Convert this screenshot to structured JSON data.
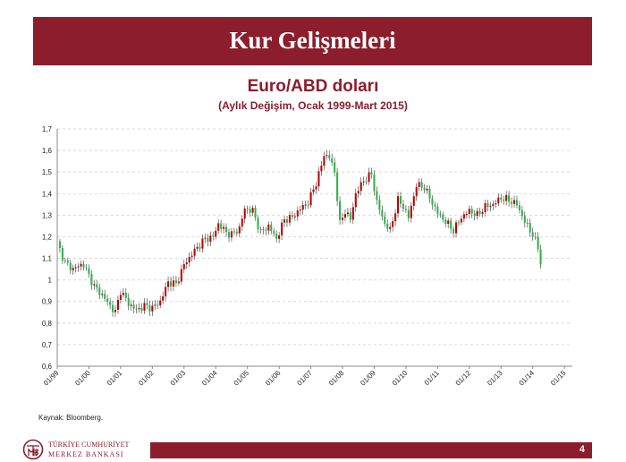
{
  "header": {
    "title": "Kur Gelişmeleri"
  },
  "chart_data": {
    "type": "candlestick",
    "title": "Euro/ABD doları",
    "subtitle": "(Aylık Değişim, Ocak 1999-Mart 2015)",
    "xlabel": "",
    "ylabel": "",
    "ylim": [
      0.6,
      1.7
    ],
    "y_ticks": [
      "0,6",
      "0,7",
      "0,8",
      "0,9",
      "1",
      "1,1",
      "1,2",
      "1,3",
      "1,4",
      "1,5",
      "1,6",
      "1,7"
    ],
    "x_ticks": [
      "01/99",
      "01/00",
      "01/01",
      "01/02",
      "01/03",
      "01/04",
      "01/05",
      "01/06",
      "01/07",
      "01/08",
      "01/09",
      "01/10",
      "01/11",
      "01/12",
      "01/13",
      "01/14",
      "01/15"
    ],
    "grid": true,
    "up_color": "#c00000",
    "down_color": "#2db34a",
    "anchors": [
      {
        "m": 0,
        "v": 1.17
      },
      {
        "m": 3,
        "v": 1.08
      },
      {
        "m": 6,
        "v": 1.05
      },
      {
        "m": 9,
        "v": 1.07
      },
      {
        "m": 10,
        "v": 1.07
      },
      {
        "m": 14,
        "v": 0.97
      },
      {
        "m": 17,
        "v": 0.93
      },
      {
        "m": 20,
        "v": 0.88
      },
      {
        "m": 22,
        "v": 0.85
      },
      {
        "m": 24,
        "v": 0.95
      },
      {
        "m": 27,
        "v": 0.89
      },
      {
        "m": 30,
        "v": 0.86
      },
      {
        "m": 33,
        "v": 0.88
      },
      {
        "m": 36,
        "v": 0.87
      },
      {
        "m": 39,
        "v": 0.9
      },
      {
        "m": 42,
        "v": 0.99
      },
      {
        "m": 45,
        "v": 0.98
      },
      {
        "m": 48,
        "v": 1.07
      },
      {
        "m": 51,
        "v": 1.12
      },
      {
        "m": 53,
        "v": 1.15
      },
      {
        "m": 56,
        "v": 1.19
      },
      {
        "m": 59,
        "v": 1.2
      },
      {
        "m": 61,
        "v": 1.26
      },
      {
        "m": 64,
        "v": 1.22
      },
      {
        "m": 66,
        "v": 1.21
      },
      {
        "m": 69,
        "v": 1.24
      },
      {
        "m": 71,
        "v": 1.33
      },
      {
        "m": 74,
        "v": 1.32
      },
      {
        "m": 77,
        "v": 1.22
      },
      {
        "m": 80,
        "v": 1.25
      },
      {
        "m": 83,
        "v": 1.19
      },
      {
        "m": 86,
        "v": 1.28
      },
      {
        "m": 89,
        "v": 1.29
      },
      {
        "m": 92,
        "v": 1.33
      },
      {
        "m": 95,
        "v": 1.36
      },
      {
        "m": 98,
        "v": 1.45
      },
      {
        "m": 100,
        "v": 1.53
      },
      {
        "m": 101,
        "v": 1.58
      },
      {
        "m": 103,
        "v": 1.57
      },
      {
        "m": 105,
        "v": 1.5
      },
      {
        "m": 107,
        "v": 1.26
      },
      {
        "m": 109,
        "v": 1.32
      },
      {
        "m": 111,
        "v": 1.28
      },
      {
        "m": 113,
        "v": 1.4
      },
      {
        "m": 116,
        "v": 1.46
      },
      {
        "m": 119,
        "v": 1.49
      },
      {
        "m": 121,
        "v": 1.36
      },
      {
        "m": 124,
        "v": 1.26
      },
      {
        "m": 126,
        "v": 1.23
      },
      {
        "m": 129,
        "v": 1.37
      },
      {
        "m": 131,
        "v": 1.34
      },
      {
        "m": 133,
        "v": 1.29
      },
      {
        "m": 136,
        "v": 1.44
      },
      {
        "m": 139,
        "v": 1.43
      },
      {
        "m": 141,
        "v": 1.38
      },
      {
        "m": 144,
        "v": 1.31
      },
      {
        "m": 147,
        "v": 1.27
      },
      {
        "m": 150,
        "v": 1.23
      },
      {
        "m": 153,
        "v": 1.29
      },
      {
        "m": 156,
        "v": 1.32
      },
      {
        "m": 159,
        "v": 1.3
      },
      {
        "m": 162,
        "v": 1.34
      },
      {
        "m": 165,
        "v": 1.35
      },
      {
        "m": 168,
        "v": 1.38
      },
      {
        "m": 171,
        "v": 1.37
      },
      {
        "m": 174,
        "v": 1.35
      },
      {
        "m": 177,
        "v": 1.27
      },
      {
        "m": 180,
        "v": 1.21
      },
      {
        "m": 182,
        "v": 1.15
      },
      {
        "m": 183,
        "v": 1.08
      }
    ]
  },
  "footer": {
    "source": "Kaynak: Bloomberg.",
    "bank_line1": "TÜRKİYE CUMHURİYET",
    "bank_line2": "MERKEZ BANKASI",
    "page_number": "4"
  }
}
